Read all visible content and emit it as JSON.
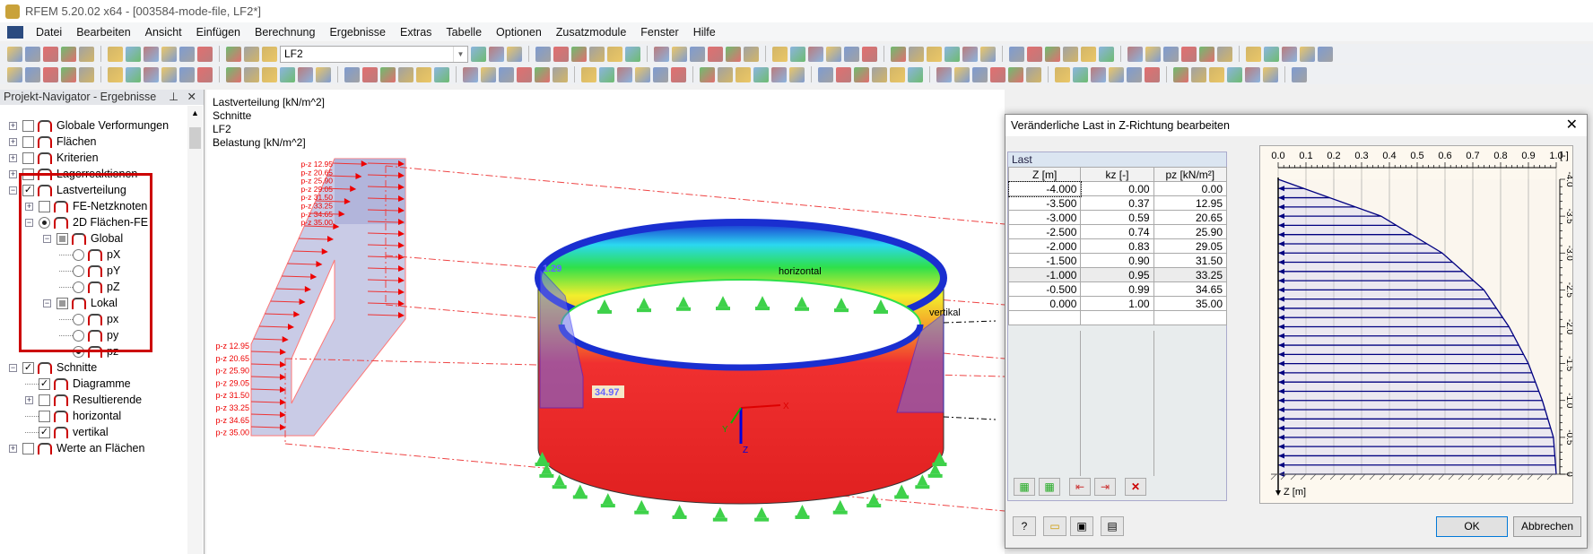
{
  "window": {
    "title": "RFEM 5.20.02 x64 - [003584-mode-file, LF2*]"
  },
  "menu": [
    "Datei",
    "Bearbeiten",
    "Ansicht",
    "Einfügen",
    "Berechnung",
    "Ergebnisse",
    "Extras",
    "Tabelle",
    "Optionen",
    "Zusatzmodule",
    "Fenster",
    "Hilfe"
  ],
  "toolbar": {
    "loadcase": "LF2"
  },
  "navigator": {
    "title": "Projekt-Navigator - Ergebnisse",
    "items": [
      {
        "label": "Globale Verformungen",
        "level": 0,
        "pm": "+",
        "ctl": "cb"
      },
      {
        "label": "Flächen",
        "level": 0,
        "pm": "+",
        "ctl": "cb"
      },
      {
        "label": "Kriterien",
        "level": 0,
        "pm": "+",
        "ctl": "cb"
      },
      {
        "label": "Lagerreaktionen",
        "level": 0,
        "pm": "+",
        "ctl": "cb"
      },
      {
        "label": "Lastverteilung",
        "level": 0,
        "pm": "-",
        "ctl": "cbon"
      },
      {
        "label": "FE-Netzknoten",
        "level": 1,
        "pm": "+",
        "ctl": "cb"
      },
      {
        "label": "2D Flächen-FE",
        "level": 1,
        "pm": "-",
        "ctl": "rbon"
      },
      {
        "label": "Global",
        "level": 2,
        "pm": "-",
        "ctl": "part"
      },
      {
        "label": "pX",
        "level": 3,
        "pm": "",
        "ctl": "rb"
      },
      {
        "label": "pY",
        "level": 3,
        "pm": "",
        "ctl": "rb"
      },
      {
        "label": "pZ",
        "level": 3,
        "pm": "",
        "ctl": "rb"
      },
      {
        "label": "Lokal",
        "level": 2,
        "pm": "-",
        "ctl": "part"
      },
      {
        "label": "px",
        "level": 3,
        "pm": "",
        "ctl": "rb"
      },
      {
        "label": "py",
        "level": 3,
        "pm": "",
        "ctl": "rb"
      },
      {
        "label": "pz",
        "level": 3,
        "pm": "",
        "ctl": "rbon"
      },
      {
        "label": "Schnitte",
        "level": 0,
        "pm": "-",
        "ctl": "cbon"
      },
      {
        "label": "Diagramme",
        "level": 1,
        "pm": "",
        "ctl": "cbon"
      },
      {
        "label": "Resultierende",
        "level": 1,
        "pm": "+",
        "ctl": "cb"
      },
      {
        "label": "horizontal",
        "level": 1,
        "pm": "",
        "ctl": "cb"
      },
      {
        "label": "vertikal",
        "level": 1,
        "pm": "",
        "ctl": "cbon"
      },
      {
        "label": "Werte an Flächen",
        "level": 0,
        "pm": "+",
        "ctl": "cb"
      }
    ]
  },
  "viewport": {
    "info": [
      "Lastverteilung [kN/m^2]",
      "Schnitte",
      "LF2",
      "Belastung [kN/m^2]"
    ],
    "load_labels": [
      "p-z 12.95",
      "p-z 20.65",
      "p-z 25.90",
      "p-z 29.05",
      "p-z 31.50",
      "p-z 33.25",
      "p-z 34.65",
      "p-z 35.00"
    ],
    "value_min": "1.29",
    "value_max": "34.97",
    "section_h": "horizontal",
    "section_v": "vertikal",
    "axis_x": "X",
    "axis_y": "Y",
    "axis_z": "Z"
  },
  "dialog": {
    "title": "Veränderliche Last in Z-Richtung bearbeiten",
    "group": "Last",
    "columns": [
      "Z [m]",
      "kz [-]",
      "pz [kN/m²]"
    ],
    "rows": [
      [
        "-4.000",
        "0.00",
        "0.00"
      ],
      [
        "-3.500",
        "0.37",
        "12.95"
      ],
      [
        "-3.000",
        "0.59",
        "20.65"
      ],
      [
        "-2.500",
        "0.74",
        "25.90"
      ],
      [
        "-2.000",
        "0.83",
        "29.05"
      ],
      [
        "-1.500",
        "0.90",
        "31.50"
      ],
      [
        "-1.000",
        "0.95",
        "33.25"
      ],
      [
        "-0.500",
        "0.99",
        "34.65"
      ],
      [
        "0.000",
        "1.00",
        "35.00"
      ]
    ],
    "ok": "OK",
    "cancel": "Abbrechen"
  },
  "chart_data": {
    "type": "line",
    "xlabel": "[-]",
    "ylabel": "Z [m]",
    "xlim": [
      0,
      1
    ],
    "ylim": [
      -4,
      0
    ],
    "xticks": [
      "0.0",
      "0.1",
      "0.2",
      "0.3",
      "0.4",
      "0.5",
      "0.6",
      "0.7",
      "0.8",
      "0.9",
      "1.0"
    ],
    "yticks": [
      "-4.0",
      "-3.5",
      "-3.0",
      "-2.5",
      "-2.0",
      "-1.5",
      "-1.0",
      "-0.5",
      "0"
    ],
    "z": [
      -4,
      -3.5,
      -3,
      -2.5,
      -2,
      -1.5,
      -1,
      -0.5,
      0
    ],
    "kz": [
      0,
      0.37,
      0.59,
      0.74,
      0.83,
      0.9,
      0.95,
      0.99,
      1.0
    ],
    "color": "#000080"
  }
}
